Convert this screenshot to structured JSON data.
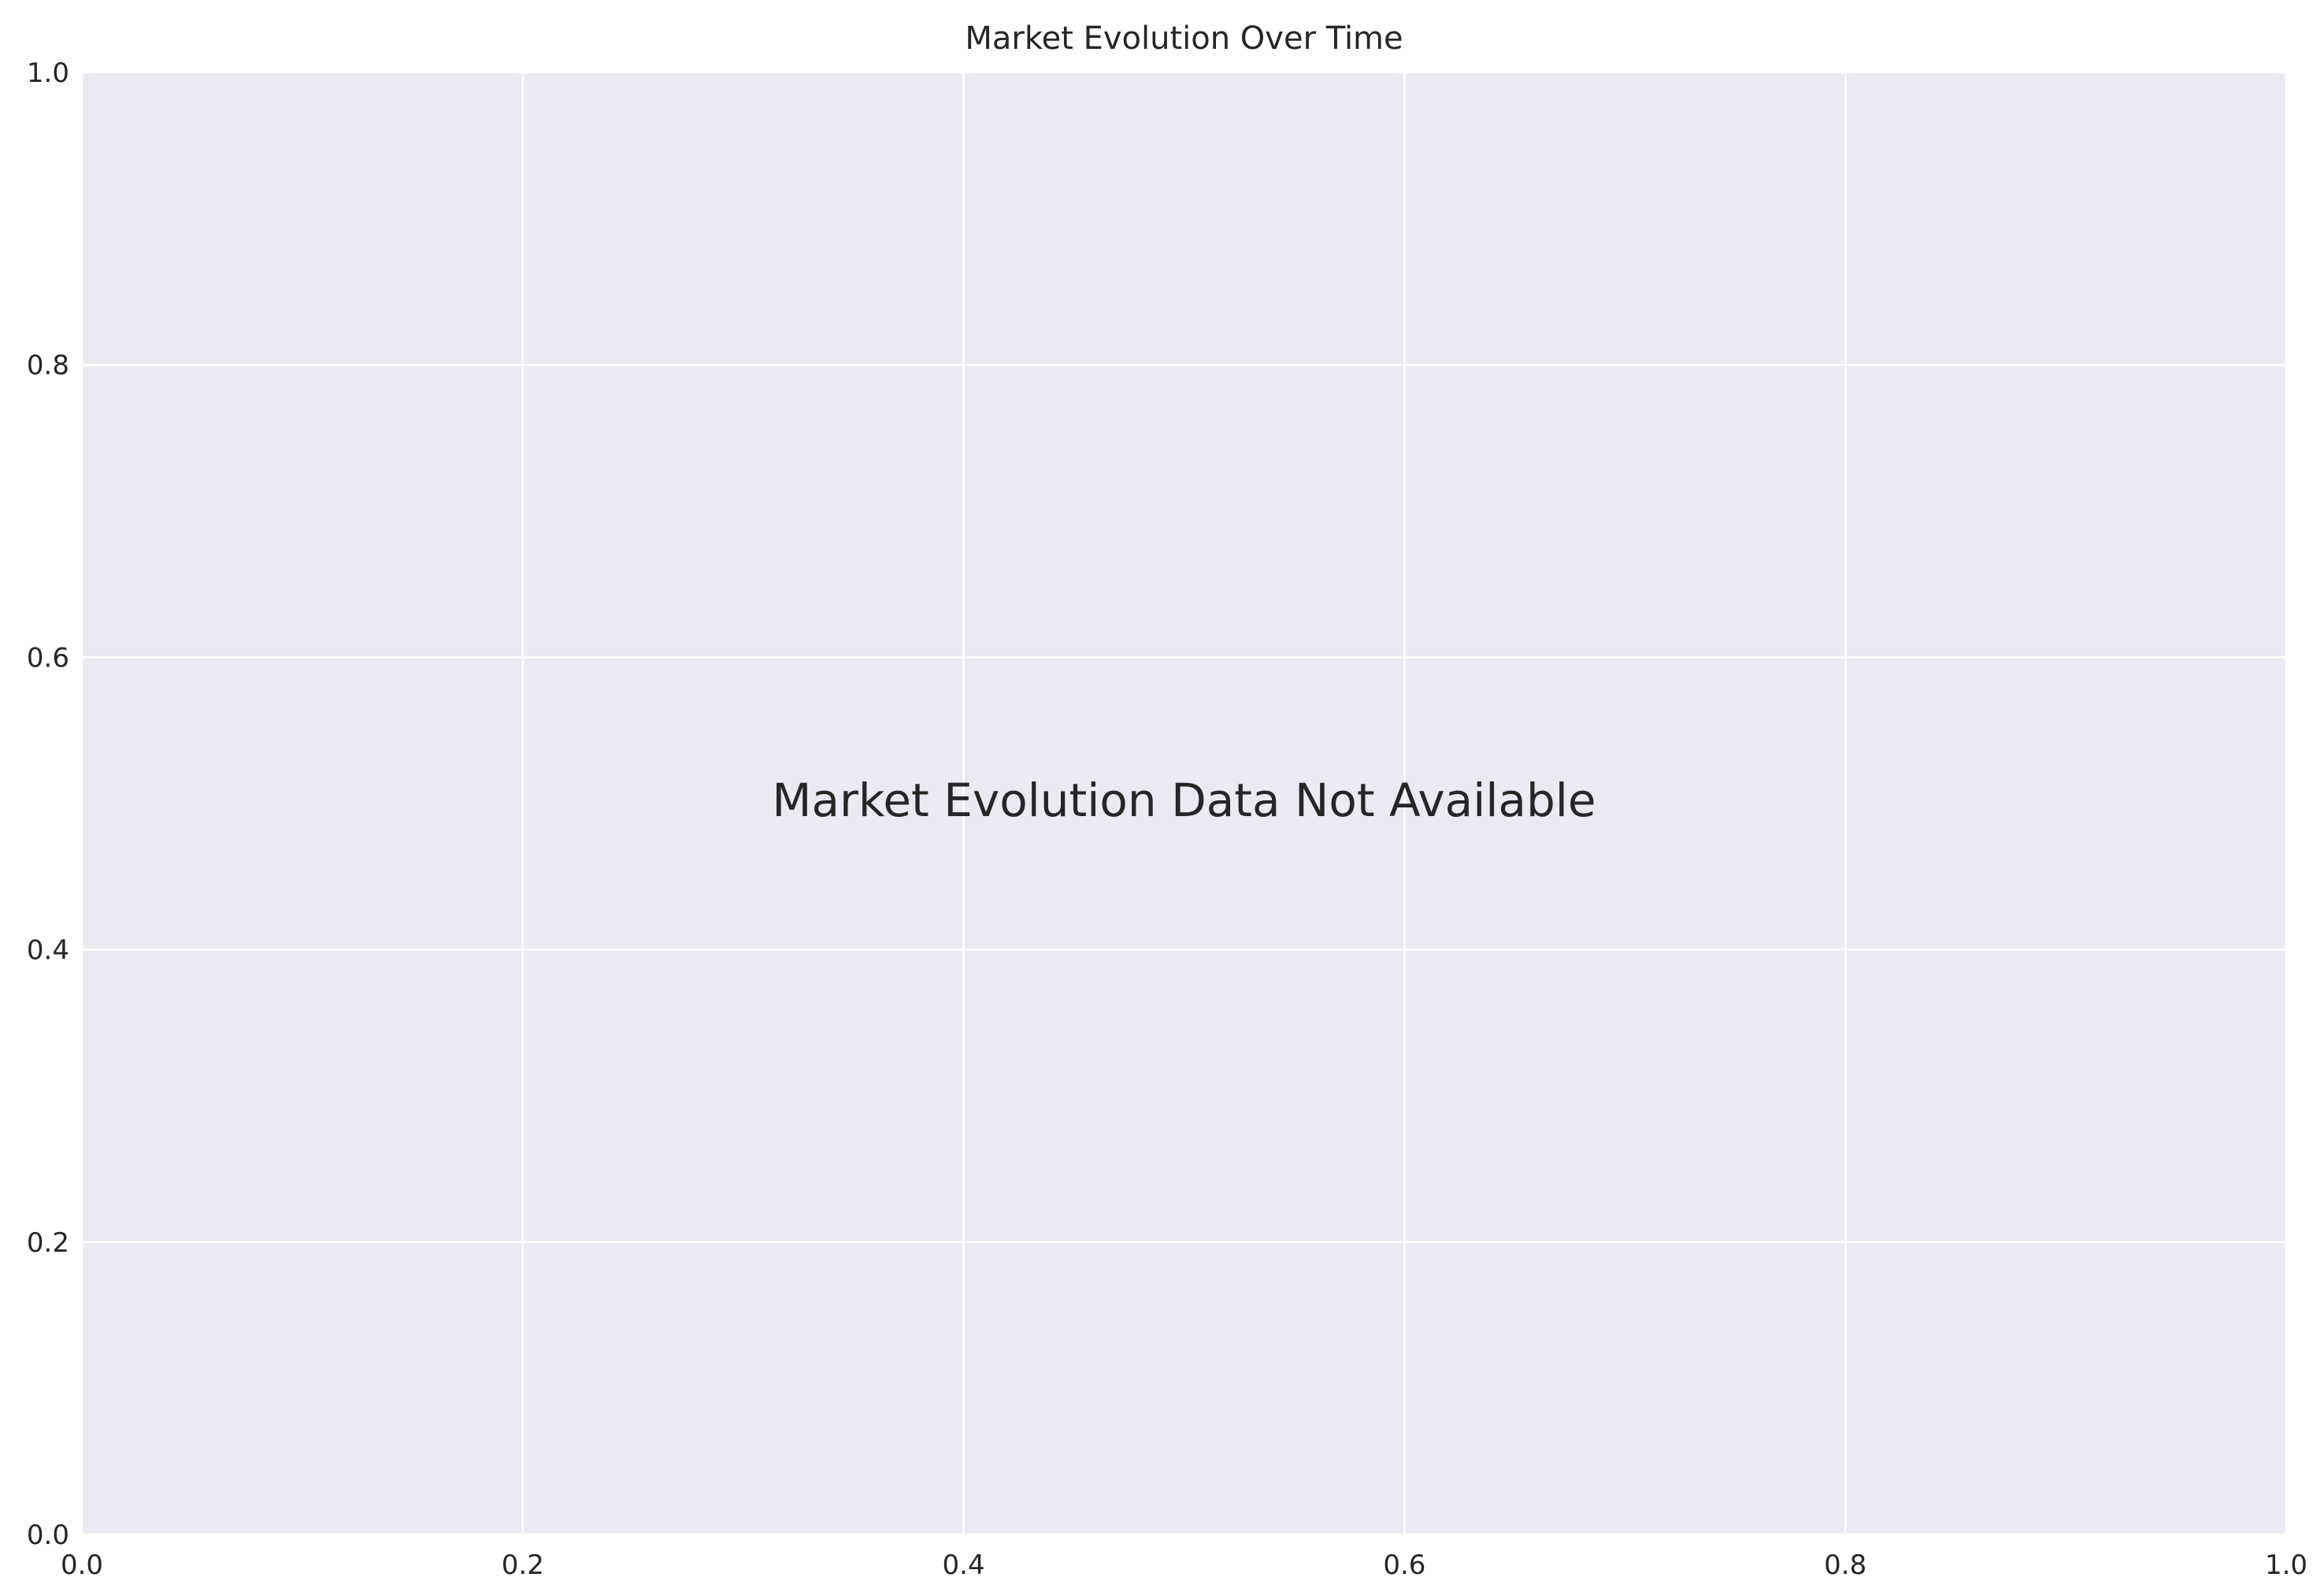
{
  "chart_data": {
    "type": "line",
    "title": "Market Evolution Over Time",
    "xlabel": "",
    "ylabel": "",
    "xlim": [
      0.0,
      1.0
    ],
    "ylim": [
      0.0,
      1.0
    ],
    "x_ticks": [
      "0.0",
      "0.2",
      "0.4",
      "0.6",
      "0.8",
      "1.0"
    ],
    "y_ticks": [
      "0.0",
      "0.2",
      "0.4",
      "0.6",
      "0.8",
      "1.0"
    ],
    "grid": true,
    "series": [],
    "annotation": "Market Evolution Data Not Available",
    "colors": {
      "plot_background": "#eaeaf2",
      "grid": "#ffffff",
      "text": "#262626",
      "figure_background": "#ffffff"
    }
  }
}
